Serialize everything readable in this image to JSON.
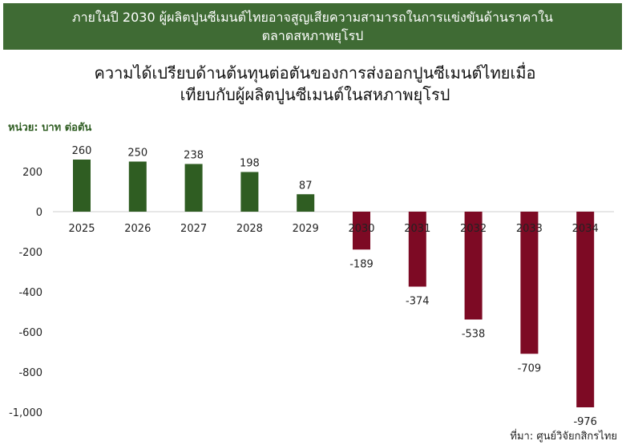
{
  "header": {
    "banner_line1": "ภายในปี 2030 ผู้ผลิตปูนซีเมนต์ไทยอาจสูญเสียความสามารถในการแข่งขันด้านราคาใน",
    "banner_line2": "ตลาดสหภาพยุโรป"
  },
  "chart": {
    "title_line1": "ความได้เปรียบด้านต้นทุนต่อตันของการส่งออกปูนซีเมนต์ไทยเมื่อ",
    "title_line2": "เทียบกับผู้ผลิตปูนซีเมนต์ในสหภาพยุโรป",
    "unit_label": "หน่วย: บาท ต่อตัน",
    "source": "ที่มา: ศูนย์วิจัยกสิกรไทย"
  },
  "colors": {
    "banner": "#3f6b34",
    "positive": "#2f5d22",
    "negative": "#7d0a24"
  },
  "chart_data": {
    "type": "bar",
    "categories": [
      "2025",
      "2026",
      "2027",
      "2028",
      "2029",
      "2030",
      "2031",
      "2032",
      "2033",
      "2034"
    ],
    "values": [
      260,
      250,
      238,
      198,
      87,
      -189,
      -374,
      -538,
      -709,
      -976
    ],
    "title": "ความได้เปรียบด้านต้นทุนต่อตันของการส่งออกปูนซีเมนต์ไทยเมื่อเทียบกับผู้ผลิตปูนซีเมนต์ในสหภาพยุโรป",
    "xlabel": "",
    "ylabel": "หน่วย: บาท ต่อตัน",
    "ylim": [
      -1000,
      300
    ],
    "yticks": [
      200,
      0,
      -200,
      -400,
      -600,
      -800,
      -1000
    ],
    "ytick_labels": [
      "200",
      "0",
      "-200",
      "-400",
      "-600",
      "-800",
      "-1,000"
    ],
    "grid": false,
    "legend": "none"
  }
}
